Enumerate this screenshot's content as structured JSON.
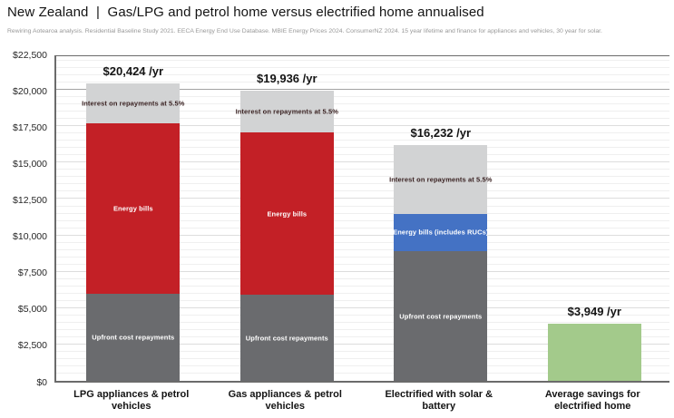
{
  "header": {
    "title": "New Zealand  |  Gas/LPG and petrol home versus electrified home annualised",
    "subtitle": "Rewiring Aotearoa analysis. Residential Baseline Study 2021. EECA Energy End Use Database. MBIE Energy Prices 2024. ConsumerNZ 2024. 15 year lifetime and finance for appliances and vehicles, 30 year for solar."
  },
  "colors": {
    "red": "#c32026",
    "dark_gray": "#6a6b6e",
    "light_gray": "#d2d3d4",
    "blue": "#4472c4",
    "green": "#a3ca8b",
    "segment_label_light": "#ffffff",
    "segment_label_dark": "#3a2222",
    "axis": "#6b6b6b",
    "grid_minor": "#efefef",
    "grid_major": "#dddddd",
    "grid_emphasized": "#a3a3a3"
  },
  "chart_data": {
    "type": "bar",
    "stacked": true,
    "title": "New Zealand | Gas/LPG and petrol home versus electrified home annualised",
    "xlabel": "",
    "ylabel": "",
    "ylim": [
      0,
      22500
    ],
    "y_major_step": 2500,
    "y_minor_step": 500,
    "emphasized_gridline_value": 20000,
    "grid": "on",
    "legend": "none",
    "y_tick_labels": [
      "$0",
      "$2,500",
      "$5,000",
      "$7,500",
      "$10,000",
      "$12,500",
      "$15,000",
      "$17,500",
      "$20,000",
      "$22,500"
    ],
    "categories": [
      [
        "LPG appliances & petrol",
        "vehicles"
      ],
      [
        "Gas appliances & petrol",
        "vehicles"
      ],
      [
        "Electrified with solar &",
        "battery"
      ],
      [
        "Average savings for",
        "electrified home"
      ]
    ],
    "bars": [
      {
        "category": "LPG appliances & petrol vehicles",
        "total": 20424,
        "total_label": "$20,424 /yr",
        "segments": [
          {
            "name": "Upfront cost repayments",
            "value": 6000,
            "color_key": "dark_gray",
            "label": "Upfront cost repayments",
            "label_color_key": "segment_label_light"
          },
          {
            "name": "Energy bills",
            "value": 11700,
            "color_key": "red",
            "label": "Energy bills",
            "label_color_key": "segment_label_light"
          },
          {
            "name": "Interest on repayments at 5.5%",
            "value": 2724,
            "color_key": "light_gray",
            "label": "Interest on repayments at 5.5%",
            "label_color_key": "segment_label_dark"
          }
        ]
      },
      {
        "category": "Gas appliances & petrol vehicles",
        "total": 19936,
        "total_label": "$19,936 /yr",
        "segments": [
          {
            "name": "Upfront cost repayments",
            "value": 5900,
            "color_key": "dark_gray",
            "label": "Upfront cost repayments",
            "label_color_key": "segment_label_light"
          },
          {
            "name": "Energy bills",
            "value": 11150,
            "color_key": "red",
            "label": "Energy bills",
            "label_color_key": "segment_label_light"
          },
          {
            "name": "Interest on repayments at 5.5%",
            "value": 2886,
            "color_key": "light_gray",
            "label": "Interest on repayments at 5.5%",
            "label_color_key": "segment_label_dark"
          }
        ]
      },
      {
        "category": "Electrified with solar & battery",
        "total": 16232,
        "total_label": "$16,232 /yr",
        "segments": [
          {
            "name": "Upfront cost repayments",
            "value": 8900,
            "color_key": "dark_gray",
            "label": "Upfront cost repayments",
            "label_color_key": "segment_label_light"
          },
          {
            "name": "Energy bills (includes RUCs)",
            "value": 2600,
            "color_key": "blue",
            "label": "Energy bills (includes RUCs)",
            "label_color_key": "segment_label_light"
          },
          {
            "name": "Interest on repayments at 5.5%",
            "value": 4732,
            "color_key": "light_gray",
            "label": "Interest on repayments at 5.5%",
            "label_color_key": "segment_label_dark"
          }
        ]
      },
      {
        "category": "Average savings for electrified home",
        "total": 3949,
        "total_label": "$3,949 /yr",
        "segments": [
          {
            "name": "Average savings",
            "value": 3949,
            "color_key": "green",
            "label": "",
            "label_color_key": "segment_label_light"
          }
        ]
      }
    ]
  }
}
